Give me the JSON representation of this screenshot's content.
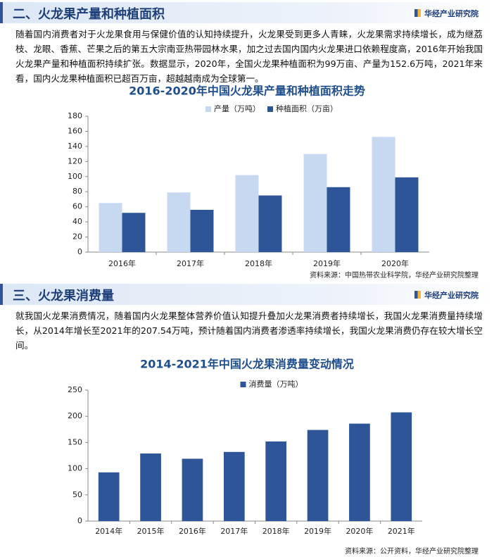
{
  "sections": [
    {
      "header": "二、火龙果产量和种植面积",
      "logo": "华经产业研究院",
      "paragraph": "随着国内消费者对于火龙果食用与保健价值的认知持续提升，火龙果受到更多人青睐，火龙果需求持续增长，成为继荔枝、龙眼、香蕉、芒果之后的第五大宗南亚热带园林水果，加之过去国内国内火龙果进口依赖程度高，2016年开始我国火龙果产量和种植面积持续扩张。数据显示，2020年，全国火龙果种植面积为99万亩、产量为152.6万吨，2021年来看，国内火龙果种植面积已超百万亩，超越越南成为全球第一。",
      "chart": {
        "type": "bar",
        "title": "2016-2020年中国火龙果产量和种植面积走势",
        "categories": [
          "2016年",
          "2017年",
          "2018年",
          "2019年",
          "2020年"
        ],
        "series": [
          {
            "name": "产量（万吨）",
            "color": "#c6d9f1",
            "values": [
              65,
              79,
              102,
              130,
              152.6
            ]
          },
          {
            "name": "种植面积（万亩）",
            "color": "#2e5597",
            "values": [
              52,
              56,
              75,
              86,
              99
            ]
          }
        ],
        "ylim": [
          0,
          180
        ],
        "yticks": [
          0,
          20,
          40,
          60,
          80,
          100,
          120,
          140,
          160,
          180
        ]
      },
      "source": "资料来源：中国热带农业科学院，华经产业研究院整理"
    },
    {
      "header": "三、火龙果消费量",
      "logo": "华经产业研究院",
      "paragraph": "就我国火龙果消费情况，随着国内火龙果整体营养价值认知提升叠加火龙果消费者持续增长，我国火龙果消费量持续增长，从2014年增长至2021年的207.54万吨，预计随着国内消费者渗透率持续增长，我国火龙果消费仍存在较大增长空间。",
      "chart": {
        "type": "bar",
        "title": "2014-2021年中国火龙果消费量变动情况",
        "categories": [
          "2014年",
          "2015年",
          "2016年",
          "2017年",
          "2018年",
          "2019年",
          "2020年",
          "2021年"
        ],
        "series": [
          {
            "name": "消费量（万吨）",
            "color": "#2e5597",
            "values": [
              93,
              129,
              119,
              132,
              152,
              174,
              186,
              207.54
            ]
          }
        ],
        "ylim": [
          0,
          250
        ],
        "yticks": [
          0,
          50,
          100,
          150,
          200,
          250
        ]
      },
      "source": "资料来源：公开资料，华经产业研究院整理"
    }
  ]
}
